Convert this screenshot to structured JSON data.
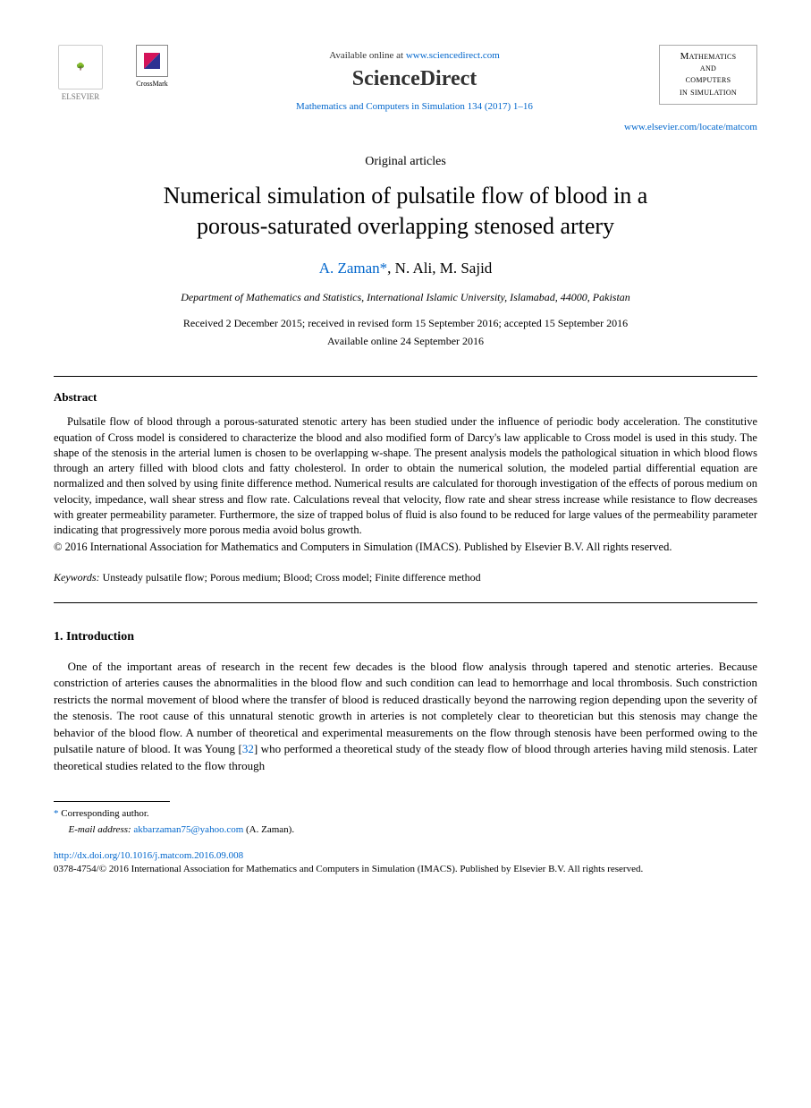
{
  "header": {
    "elsevier_label": "ELSEVIER",
    "crossmark_label": "CrossMark",
    "available_prefix": "Available online at ",
    "available_url": "www.sciencedirect.com",
    "sciencedirect_label": "ScienceDirect",
    "journal_citation": "Mathematics and Computers in Simulation 134 (2017) 1–16",
    "journal_badge_line1": "Mathematics",
    "journal_badge_line2": "and",
    "journal_badge_line3": "computers",
    "journal_badge_line4": "in simulation",
    "locate_url": "www.elsevier.com/locate/matcom"
  },
  "article": {
    "type": "Original articles",
    "title_line1": "Numerical simulation of pulsatile flow of blood in a",
    "title_line2": "porous-saturated overlapping stenosed artery",
    "author1": "A. Zaman",
    "author2": "N. Ali",
    "author3": "M. Sajid",
    "affiliation": "Department of Mathematics and Statistics, International Islamic University, Islamabad, 44000, Pakistan",
    "dates": "Received 2 December 2015; received in revised form 15 September 2016; accepted 15 September 2016",
    "available_date": "Available online 24 September 2016"
  },
  "abstract": {
    "heading": "Abstract",
    "text": "Pulsatile flow of blood through a porous-saturated stenotic artery has been studied under the influence of periodic body acceleration. The constitutive equation of Cross model is considered to characterize the blood and also modified form of Darcy's law applicable to Cross model is used in this study. The shape of the stenosis in the arterial lumen is chosen to be overlapping w-shape. The present analysis models the pathological situation in which blood flows through an artery filled with blood clots and fatty cholesterol. In order to obtain the numerical solution, the modeled partial differential equation are normalized and then solved by using finite difference method. Numerical results are calculated for thorough investigation of the effects of porous medium on velocity, impedance, wall shear stress and flow rate. Calculations reveal that velocity, flow rate and shear stress increase while resistance to flow decreases with greater permeability parameter. Furthermore, the size of trapped bolus of fluid is also found to be reduced for large values of the permeability parameter indicating that progressively more porous media avoid bolus growth.",
    "copyright": "© 2016 International Association for Mathematics and Computers in Simulation (IMACS). Published by Elsevier B.V. All rights reserved."
  },
  "keywords": {
    "label": "Keywords:",
    "text": " Unsteady pulsatile flow; Porous medium; Blood; Cross model; Finite difference method"
  },
  "introduction": {
    "heading": "1. Introduction",
    "para1_a": "One of the important areas of research in the recent few decades is the blood flow analysis through tapered and stenotic arteries. Because constriction of arteries causes the abnormalities in the blood flow and such condition can lead to hemorrhage and local thrombosis. Such constriction restricts the normal movement of blood where the transfer of blood is reduced drastically beyond the narrowing region depending upon the severity of the stenosis. The root cause of this unnatural stenotic growth in arteries is not completely clear to theoretician but this stenosis may change the behavior of the blood flow. A number of theoretical and experimental measurements on the flow through stenosis have been performed owing to the pulsatile nature of blood. It was Young [",
    "ref32": "32",
    "para1_b": "] who performed a theoretical study of the steady flow of blood through arteries having mild stenosis. Later theoretical studies related to the flow through"
  },
  "footer": {
    "corr_label": "Corresponding author.",
    "email_label": "E-mail address:",
    "email": "akbarzaman75@yahoo.com",
    "email_suffix": " (A. Zaman).",
    "doi": "http://dx.doi.org/10.1016/j.matcom.2016.09.008",
    "issn": "0378-4754/© 2016 International Association for Mathematics and Computers in Simulation (IMACS). Published by Elsevier B.V. All rights reserved."
  }
}
